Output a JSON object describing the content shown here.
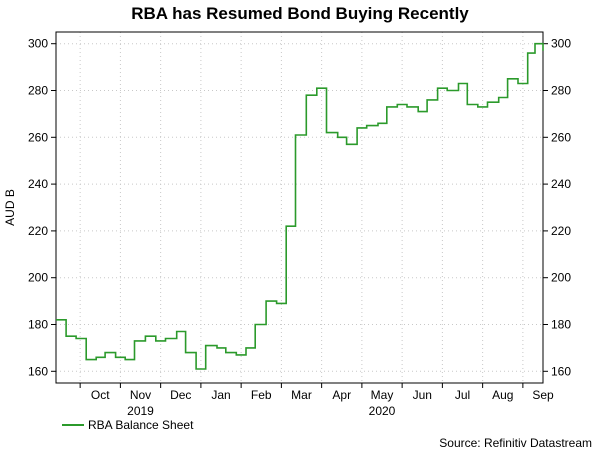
{
  "chart_data": {
    "type": "line",
    "title": "RBA has Resumed Bond Buying Recently",
    "ylabel": "AUD B",
    "xlabel": "",
    "ylim": [
      155,
      305
    ],
    "yticks": [
      160,
      180,
      200,
      220,
      240,
      260,
      280,
      300
    ],
    "month_ticks": [
      "Oct",
      "Nov",
      "Dec",
      "Jan",
      "Feb",
      "Mar",
      "Apr",
      "May",
      "Jun",
      "Jul",
      "Aug",
      "Sep"
    ],
    "year_labels": [
      {
        "label": "2019",
        "month_index": 1
      },
      {
        "label": "2020",
        "month_index": 7
      }
    ],
    "grid": true,
    "step": true,
    "x_unit": "months since 1 Oct 2019",
    "xlim": [
      -0.6,
      11.5
    ],
    "series": [
      {
        "name": "RBA Balance Sheet",
        "color": "#2b9a2b",
        "x": [
          -0.6,
          -0.35,
          -0.1,
          0.15,
          0.4,
          0.62,
          0.88,
          1.12,
          1.35,
          1.62,
          1.88,
          2.12,
          2.4,
          2.62,
          2.88,
          3.12,
          3.4,
          3.62,
          3.88,
          4.12,
          4.35,
          4.62,
          4.88,
          5.12,
          5.35,
          5.62,
          5.88,
          6.12,
          6.4,
          6.62,
          6.88,
          7.12,
          7.4,
          7.62,
          7.88,
          8.12,
          8.4,
          8.62,
          8.88,
          9.12,
          9.4,
          9.62,
          9.88,
          10.12,
          10.4,
          10.62,
          10.88,
          11.12,
          11.3,
          11.5
        ],
        "values": [
          182,
          175,
          174,
          165,
          166,
          168,
          166,
          165,
          173,
          175,
          173,
          174,
          177,
          168,
          161,
          171,
          170,
          168,
          167,
          170,
          180,
          190,
          189,
          222,
          261,
          278,
          281,
          262,
          260,
          257,
          264,
          265,
          266,
          273,
          274,
          273,
          271,
          276,
          281,
          280,
          283,
          274,
          273,
          275,
          277,
          285,
          283,
          296,
          300,
          297
        ]
      }
    ]
  },
  "source": "Source: Refinitiv Datastream"
}
